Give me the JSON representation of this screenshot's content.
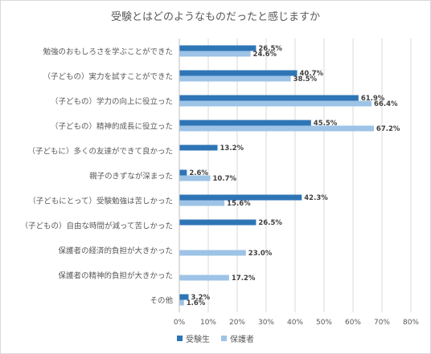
{
  "chart_data": {
    "type": "bar",
    "orientation": "horizontal",
    "title": "受験とはどのようなものだったと感じますか",
    "categories": [
      "勉強のおもしろさを学ぶことができた",
      "（子どもの）実力を試すことができた",
      "（子どもの）学力の向上に役立った",
      "（子どもの）精神的成長に役立った",
      "（子どもに）多くの友達ができて良かった",
      "親子のきずなが深まった",
      "（子どもにとって）受験勉強は苦しかった",
      "（子どもの）自由な時間が減って苦しかった",
      "保護者の経済的負担が大きかった",
      "保護者の精神的負担が大きかった",
      "その他"
    ],
    "series": [
      {
        "name": "受験生",
        "color": "#2e75b6",
        "values": [
          26.5,
          40.7,
          61.9,
          45.5,
          13.2,
          2.6,
          42.3,
          26.5,
          null,
          null,
          3.2
        ],
        "labels": [
          "26.5%",
          "40.7%",
          "61.9%",
          "45.5%",
          "13.2%",
          "2.6%",
          "42.3%",
          "26.5%",
          "",
          "",
          "3.2%"
        ]
      },
      {
        "name": "保護者",
        "color": "#9dc3e6",
        "values": [
          24.6,
          38.5,
          66.4,
          67.2,
          null,
          10.7,
          15.6,
          null,
          23.0,
          17.2,
          1.6
        ],
        "labels": [
          "24.6%",
          "38.5%",
          "66.4%",
          "67.2%",
          "",
          "10.7%",
          "15.6%",
          "",
          "23.0%",
          "17.2%",
          "1.6%"
        ]
      }
    ],
    "xlim": [
      0,
      80
    ],
    "xticks": [
      0,
      10,
      20,
      30,
      40,
      50,
      60,
      70,
      80
    ],
    "xtick_labels": [
      "0%",
      "10%",
      "20%",
      "30%",
      "40%",
      "50%",
      "60%",
      "70%",
      "80%"
    ],
    "grid": true,
    "legend": "bottom"
  }
}
